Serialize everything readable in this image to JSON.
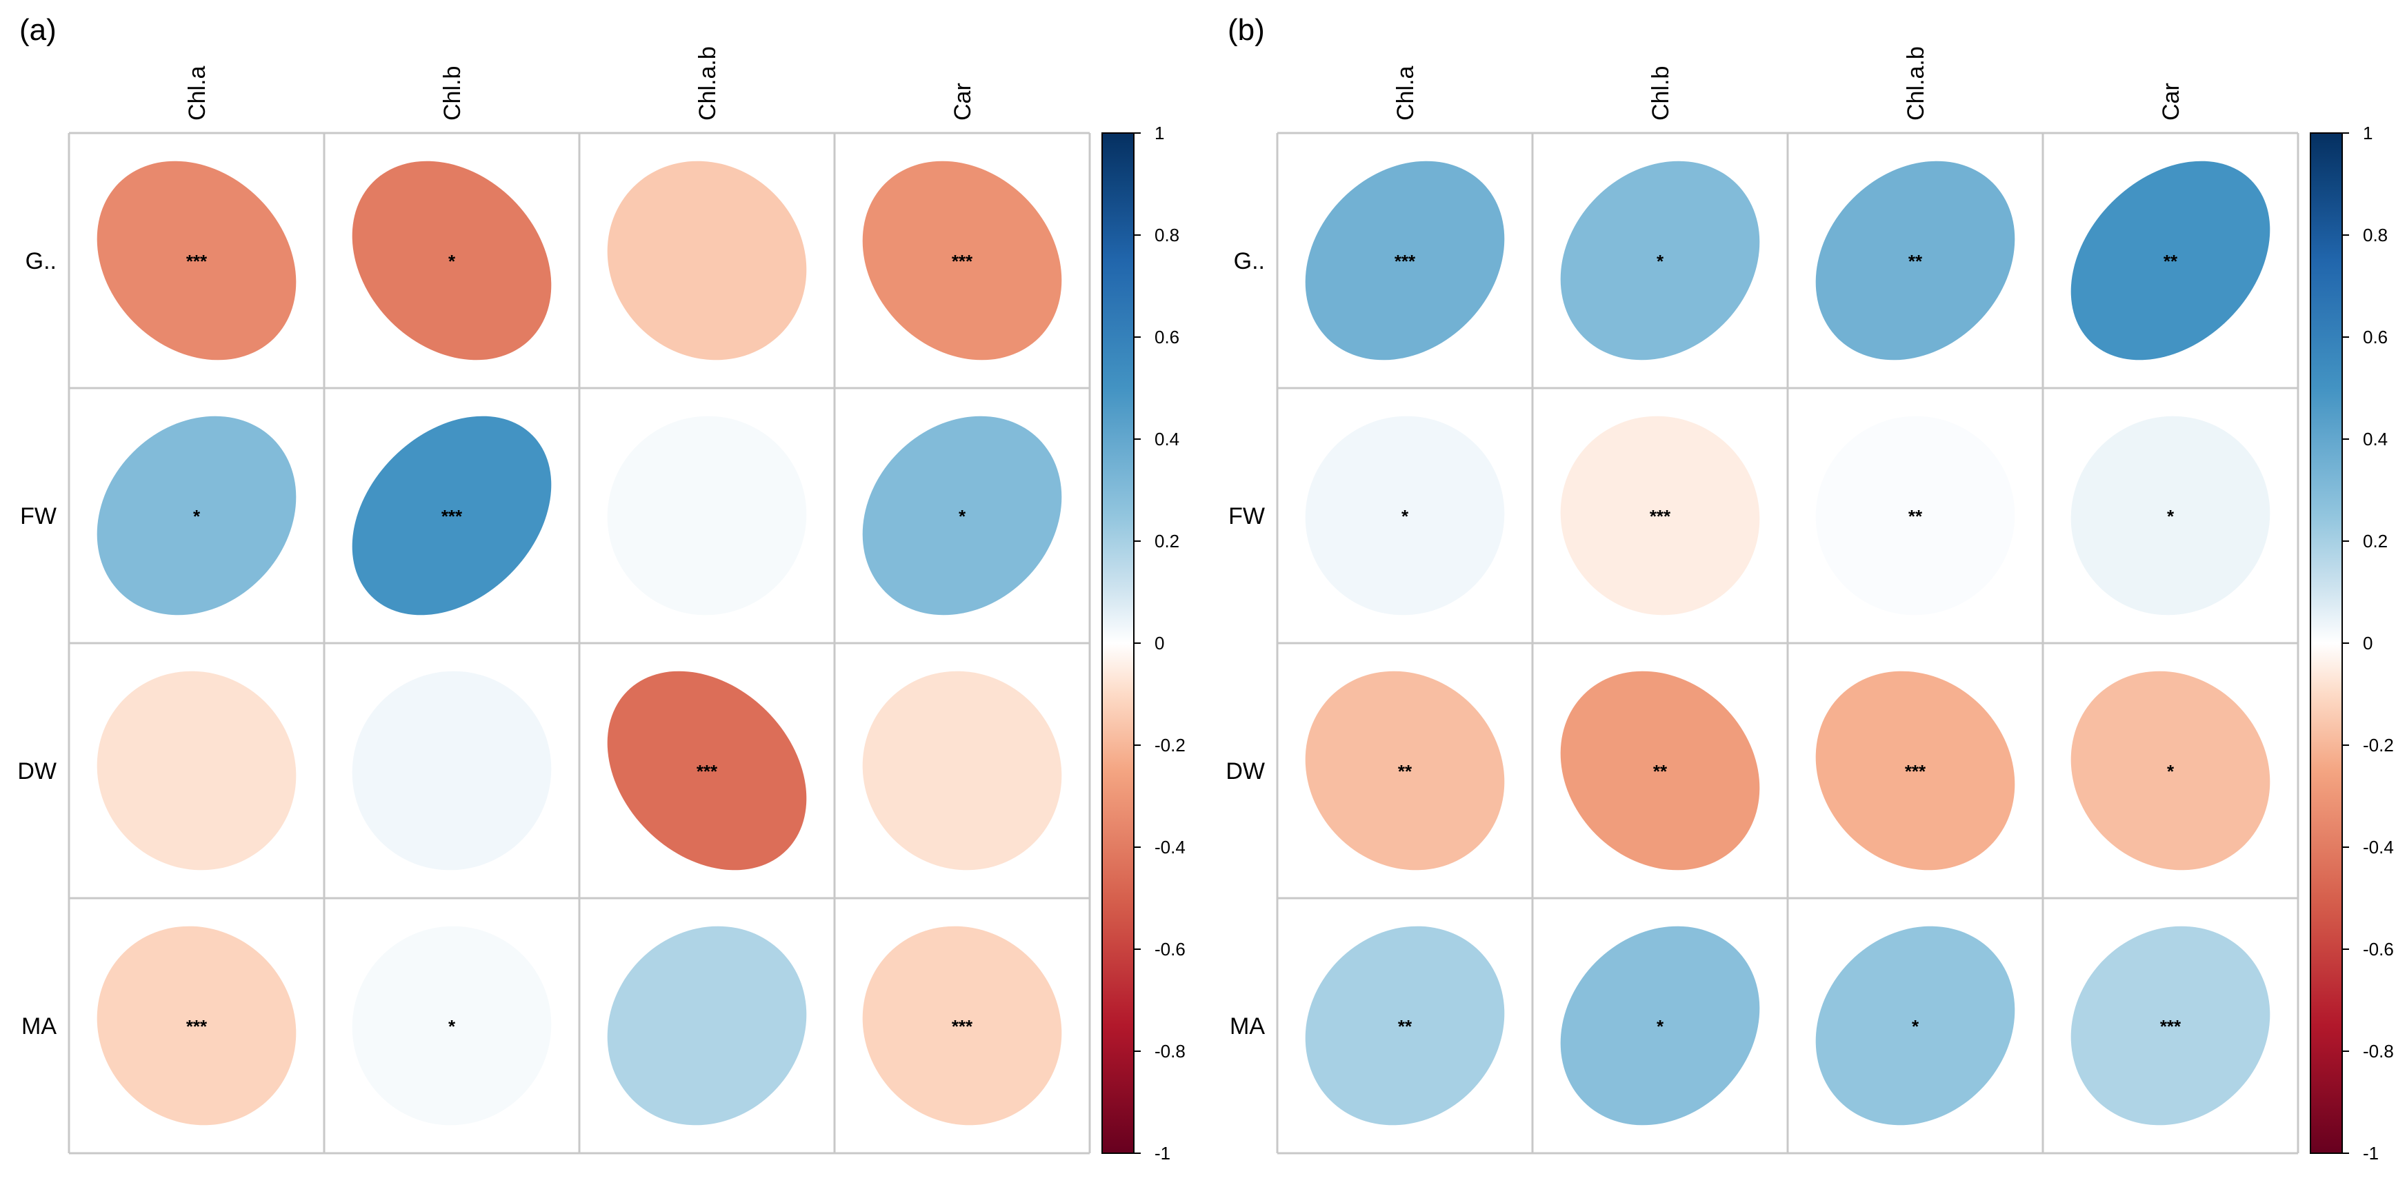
{
  "chart_data": [
    {
      "type": "heatmap",
      "panel_label": "(a)",
      "columns": [
        "Chl.a",
        "Chl.b",
        "Chl.a.b",
        "Car"
      ],
      "rows": [
        "G..",
        "FW",
        "DW",
        "MA"
      ],
      "values": [
        [
          -0.35,
          -0.4,
          -0.15,
          -0.32
        ],
        [
          0.3,
          0.5,
          0.02,
          0.3
        ],
        [
          -0.08,
          0.03,
          -0.45,
          -0.08
        ],
        [
          -0.12,
          0.02,
          0.18,
          -0.12
        ]
      ],
      "significance": [
        [
          "***",
          "*",
          "",
          "***"
        ],
        [
          "*",
          "***",
          "",
          "*"
        ],
        [
          "",
          "",
          "***",
          ""
        ],
        [
          "***",
          "*",
          "",
          "***"
        ]
      ],
      "colorbar": {
        "range": [
          -1,
          1
        ],
        "ticks": [
          "1",
          "0.8",
          "0.6",
          "0.4",
          "0.2",
          "0",
          "-0.2",
          "-0.4",
          "-0.6",
          "-0.8",
          "-1"
        ]
      }
    },
    {
      "type": "heatmap",
      "panel_label": "(b)",
      "columns": [
        "Chl.a",
        "Chl.b",
        "Chl.a.b",
        "Car"
      ],
      "rows": [
        "G..",
        "FW",
        "DW",
        "MA"
      ],
      "values": [
        [
          0.35,
          0.3,
          0.35,
          0.5
        ],
        [
          0.03,
          -0.05,
          0.01,
          0.04
        ],
        [
          -0.18,
          -0.28,
          -0.22,
          -0.18
        ],
        [
          0.2,
          0.28,
          0.25,
          0.18
        ]
      ],
      "significance": [
        [
          "***",
          "*",
          "**",
          "**"
        ],
        [
          "*",
          "***",
          "**",
          "*"
        ],
        [
          "**",
          "**",
          "***",
          "*"
        ],
        [
          "**",
          "*",
          "*",
          "***"
        ]
      ],
      "colorbar": {
        "range": [
          -1,
          1
        ],
        "ticks": [
          "1",
          "0.8",
          "0.6",
          "0.4",
          "0.2",
          "0",
          "-0.2",
          "-0.4",
          "-0.6",
          "-0.8",
          "-1"
        ]
      }
    }
  ]
}
